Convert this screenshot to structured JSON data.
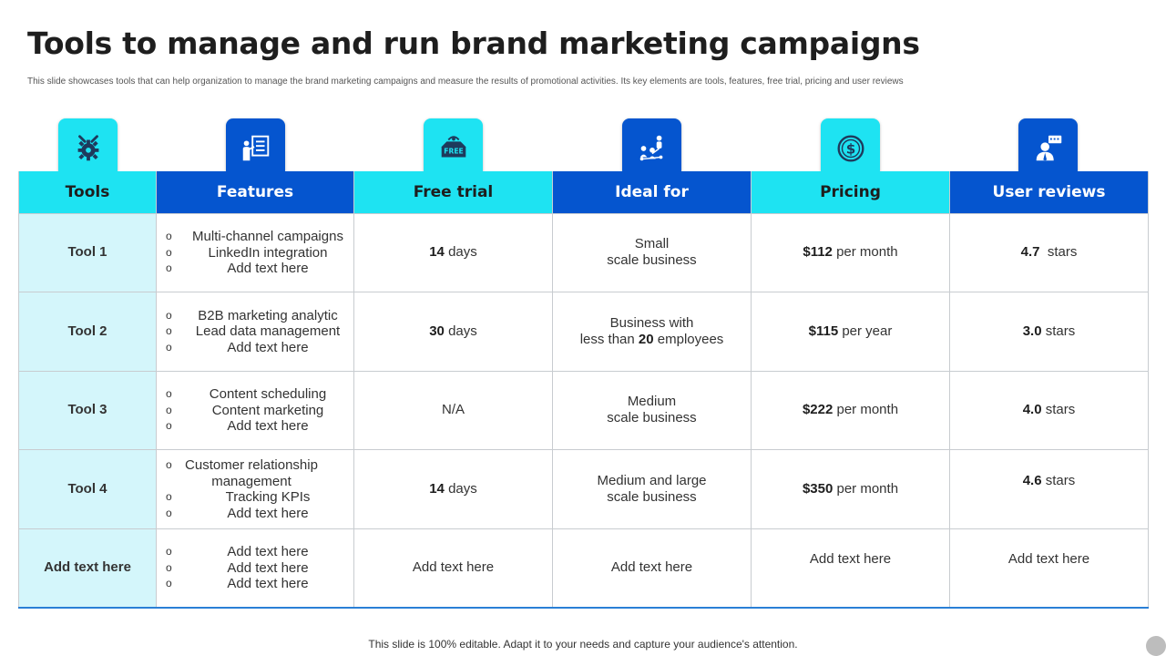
{
  "title": "Tools to manage and run brand marketing campaigns",
  "subtitle": "This slide showcases tools that can help organization to manage the brand marketing campaigns and measure the results of promotional activities. Its key elements are tools, features, free trial, pricing and user reviews",
  "headers": [
    {
      "label": "Tools",
      "icon": "settings-gear-icon",
      "style": "cyan"
    },
    {
      "label": "Features",
      "icon": "presentation-icon",
      "style": "blue"
    },
    {
      "label": "Free trial",
      "icon": "free-tag-icon",
      "style": "cyan"
    },
    {
      "label": "Ideal for",
      "icon": "team-network-icon",
      "style": "blue"
    },
    {
      "label": "Pricing",
      "icon": "dollar-coin-icon",
      "style": "cyan"
    },
    {
      "label": "User reviews",
      "icon": "user-feedback-icon",
      "style": "blue"
    }
  ],
  "rows": [
    {
      "tool": "Tool 1",
      "features": [
        "Multi-channel campaigns",
        "LinkedIn integration",
        "Add text here"
      ],
      "trial_num": "14",
      "trial_unit": " days",
      "ideal_line1": "Small",
      "ideal_line2": "scale business",
      "price_num": "$112",
      "price_unit": " per month",
      "review_num": "4.7",
      "review_unit": "  stars"
    },
    {
      "tool": "Tool 2",
      "features": [
        "B2B marketing analytic",
        "Lead data management",
        "Add text here"
      ],
      "trial_num": "30",
      "trial_unit": " days",
      "ideal_line1": "Business with",
      "ideal_line2_pre": "less than ",
      "ideal_line2_num": "20",
      "ideal_line2_post": " employees",
      "price_num": "$115",
      "price_unit": " per year",
      "review_num": "3.0",
      "review_unit": " stars"
    },
    {
      "tool": "Tool 3",
      "features": [
        "Content scheduling",
        "Content marketing",
        "Add text here"
      ],
      "trial_text": "N/A",
      "ideal_line1": "Medium",
      "ideal_line2": "scale business",
      "price_num": "$222",
      "price_unit": " per month",
      "review_num": "4.0",
      "review_unit": " stars"
    },
    {
      "tool": "Tool 4",
      "features": [
        "Customer relationship management",
        "Tracking KPIs",
        "Add text here"
      ],
      "trial_num": "14",
      "trial_unit": " days",
      "ideal_line1": "Medium and large",
      "ideal_line2": "scale business",
      "price_num": "$350",
      "price_unit": " per month",
      "review_num": "4.6",
      "review_unit": " stars"
    },
    {
      "tool": "Add text here",
      "features": [
        "Add text here",
        "Add text here",
        "Add text here"
      ],
      "trial_text": "Add text here",
      "ideal_text": "Add text here",
      "price_text": "Add text here",
      "review_text": "Add text here"
    }
  ],
  "footer": "This slide is 100% editable. Adapt it to your needs and capture your audience's attention.",
  "colors": {
    "cyan": "#1ee3f2",
    "blue": "#0555cf",
    "tool_cell_bg": "#d4f6fb",
    "grid_border": "#c8ccd0"
  }
}
